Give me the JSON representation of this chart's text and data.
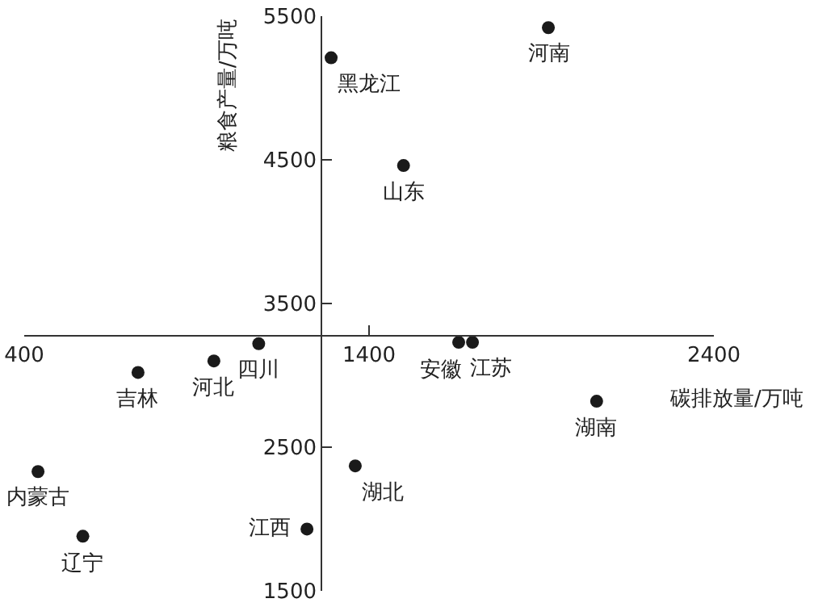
{
  "chart_data": {
    "type": "scatter",
    "xlabel": "碳排放量/万吨",
    "ylabel": "粮食产量/万吨",
    "x": [
      1920,
      1290,
      1500,
      1080,
      1660,
      1700,
      950,
      730,
      2060,
      1360,
      440,
      1220,
      570
    ],
    "series": [
      {
        "color": "#1a1a1a",
        "values": [
          5420,
          5210,
          4460,
          3220,
          3230,
          3230,
          3100,
          3020,
          2820,
          2370,
          2330,
          1930,
          1880
        ]
      }
    ],
    "xlim": [
      400,
      2400
    ],
    "xticks": [
      400,
      1400,
      2400
    ],
    "ylim": [
      1500,
      5500
    ],
    "yticks": [
      1500,
      2500,
      3500,
      4500,
      5500
    ],
    "annotations": [
      {
        "text": "河南",
        "x": 1920,
        "y": 5420
      },
      {
        "text": "黑龙江",
        "x": 1290,
        "y": 5210
      },
      {
        "text": "山东",
        "x": 1500,
        "y": 4460
      },
      {
        "text": "四川",
        "x": 1080,
        "y": 3220
      },
      {
        "text": "安徽",
        "x": 1660,
        "y": 3230
      },
      {
        "text": "江苏",
        "x": 1700,
        "y": 3230
      },
      {
        "text": "河北",
        "x": 950,
        "y": 3100
      },
      {
        "text": "吉林",
        "x": 730,
        "y": 3020
      },
      {
        "text": "湖南",
        "x": 2060,
        "y": 2820
      },
      {
        "text": "湖北",
        "x": 1360,
        "y": 2370
      },
      {
        "text": "内蒙古",
        "x": 440,
        "y": 2330
      },
      {
        "text": "江西",
        "x": 1220,
        "y": 1930
      },
      {
        "text": "辽宁",
        "x": 570,
        "y": 1880
      }
    ],
    "grid": false,
    "marker": "circle"
  }
}
